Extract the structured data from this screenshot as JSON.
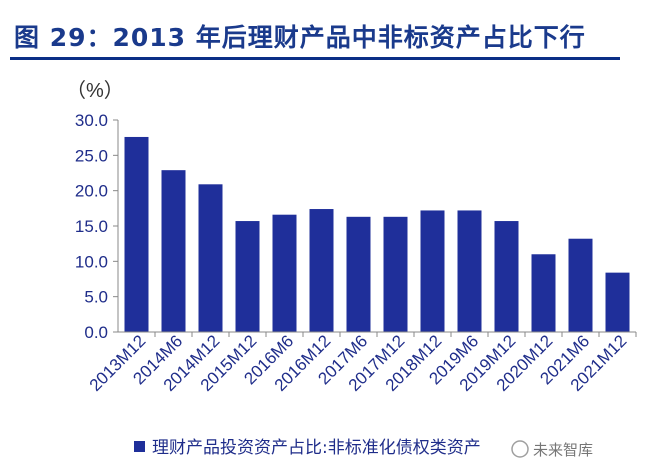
{
  "title": "图 29：2013 年后理财产品中非标资产占比下行",
  "chart_data": {
    "type": "bar",
    "unit": "（%）",
    "categories": [
      "2013M12",
      "2014M6",
      "2014M12",
      "2015M12",
      "2016M6",
      "2016M12",
      "2017M6",
      "2017M12",
      "2018M12",
      "2019M6",
      "2019M12",
      "2020M12",
      "2021M6",
      "2021M12"
    ],
    "series": [
      {
        "name": "理财产品投资资产占比:非标准化债权类资产",
        "values": [
          27.6,
          22.9,
          20.9,
          15.7,
          16.6,
          17.4,
          16.3,
          16.3,
          17.2,
          17.2,
          15.7,
          11.0,
          13.2,
          8.4
        ]
      }
    ],
    "ylim": [
      0,
      30
    ],
    "yticks": [
      "30.0",
      "25.0",
      "20.0",
      "15.0",
      "10.0",
      "5.0",
      "0.0"
    ],
    "color": "#1f2f9a",
    "legend": "bottom"
  },
  "watermark": "未来智库"
}
